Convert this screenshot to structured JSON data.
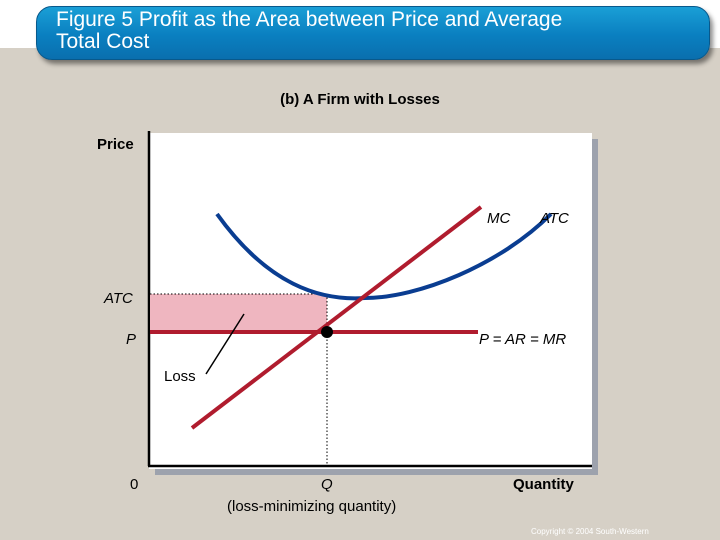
{
  "slide": {
    "title": "Figure 5 Profit as the Area between Price and Average\nTotal Cost",
    "subtitle": "(b) A Firm with Losses",
    "copyright": "Copyright © 2004  South-Western"
  },
  "diagram": {
    "y_axis_label": "Price",
    "x_axis_label": "Quantity",
    "origin_label": "0",
    "price_tick": "P",
    "atc_tick": "ATC",
    "quantity_tick": "Q",
    "quantity_note": "(loss-minimizing quantity)",
    "mc_label": "MC",
    "atc_curve_label": "ATC",
    "price_line_label": "P = AR = MR",
    "loss_label": "Loss"
  },
  "colors": {
    "title_bar": "#0a87c8",
    "curve_atc": "#0a3d91",
    "curve_mc": "#b01c2e",
    "loss_area": "#efb6c0"
  }
}
